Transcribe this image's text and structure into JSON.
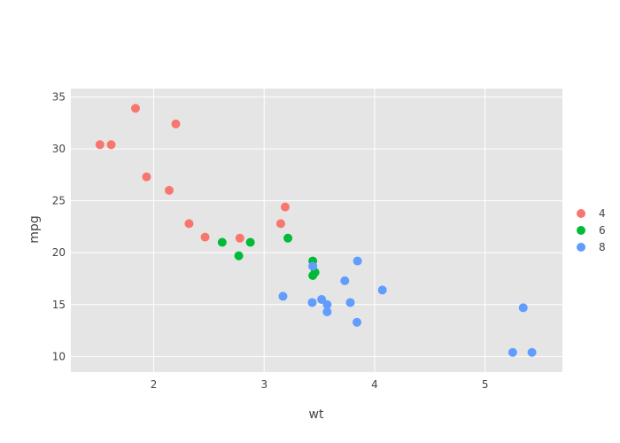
{
  "chart_data": {
    "type": "scatter",
    "xlabel": "wt",
    "ylabel": "mpg",
    "xlim": [
      1.25,
      5.7
    ],
    "ylim": [
      8.5,
      35.8
    ],
    "xticks": [
      2,
      3,
      4,
      5
    ],
    "yticks": [
      10,
      15,
      20,
      25,
      30,
      35
    ],
    "grid": true,
    "legend_position": "right",
    "background": "#e5e5e5",
    "series": [
      {
        "name": "4",
        "color": "#f8766d",
        "points": [
          {
            "x": 1.513,
            "y": 30.4
          },
          {
            "x": 1.615,
            "y": 30.4
          },
          {
            "x": 1.835,
            "y": 33.9
          },
          {
            "x": 1.935,
            "y": 27.3
          },
          {
            "x": 2.14,
            "y": 26.0
          },
          {
            "x": 2.2,
            "y": 32.4
          },
          {
            "x": 2.32,
            "y": 22.8
          },
          {
            "x": 2.465,
            "y": 21.5
          },
          {
            "x": 2.78,
            "y": 21.4
          },
          {
            "x": 3.15,
            "y": 22.8
          },
          {
            "x": 3.19,
            "y": 24.4
          }
        ]
      },
      {
        "name": "6",
        "color": "#00ba38",
        "points": [
          {
            "x": 2.62,
            "y": 21.0
          },
          {
            "x": 2.77,
            "y": 19.7
          },
          {
            "x": 2.875,
            "y": 21.0
          },
          {
            "x": 3.215,
            "y": 21.4
          },
          {
            "x": 3.44,
            "y": 19.2
          },
          {
            "x": 3.44,
            "y": 17.8
          },
          {
            "x": 3.46,
            "y": 18.1
          }
        ]
      },
      {
        "name": "8",
        "color": "#619cff",
        "points": [
          {
            "x": 3.17,
            "y": 15.8
          },
          {
            "x": 3.435,
            "y": 15.2
          },
          {
            "x": 3.44,
            "y": 18.7
          },
          {
            "x": 3.52,
            "y": 15.5
          },
          {
            "x": 3.57,
            "y": 14.3
          },
          {
            "x": 3.57,
            "y": 15.0
          },
          {
            "x": 3.73,
            "y": 17.3
          },
          {
            "x": 3.78,
            "y": 15.2
          },
          {
            "x": 3.84,
            "y": 13.3
          },
          {
            "x": 3.845,
            "y": 19.2
          },
          {
            "x": 4.07,
            "y": 16.4
          },
          {
            "x": 5.25,
            "y": 10.4
          },
          {
            "x": 5.345,
            "y": 14.7
          },
          {
            "x": 5.424,
            "y": 10.4
          }
        ]
      }
    ]
  }
}
